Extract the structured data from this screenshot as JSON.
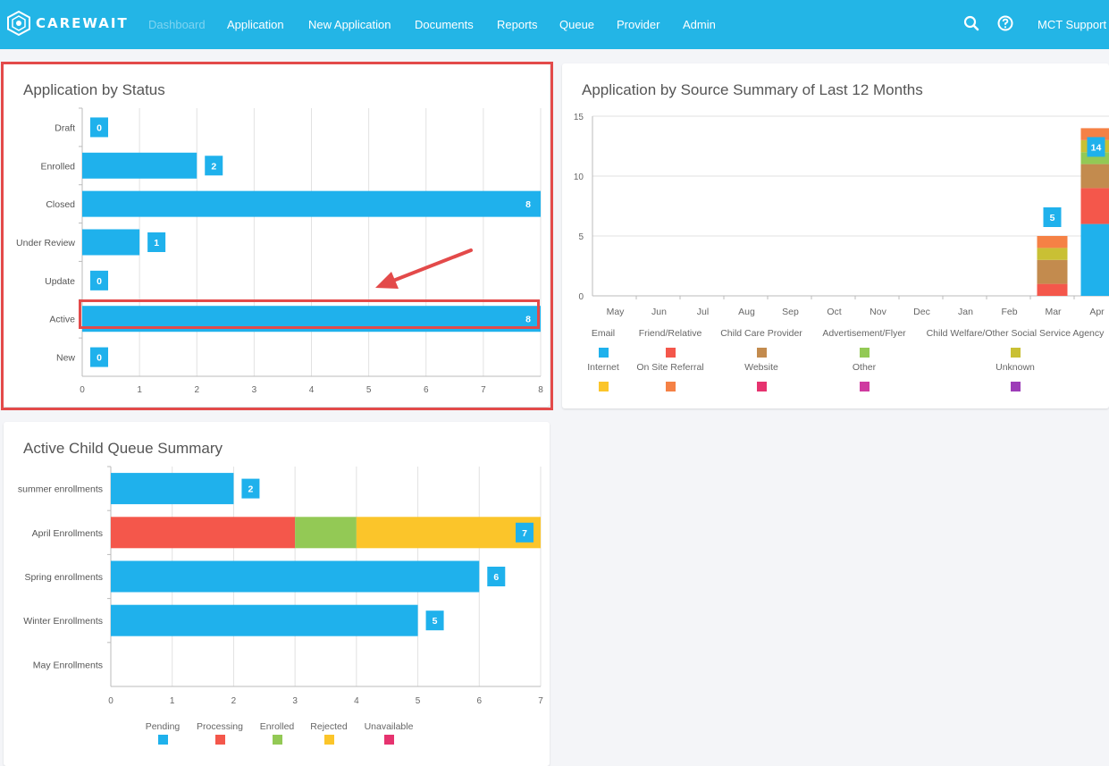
{
  "nav": {
    "brand": "CAREWAIT",
    "links": [
      "Dashboard",
      "Application",
      "New Application",
      "Documents",
      "Reports",
      "Queue",
      "Provider",
      "Admin"
    ],
    "user": "MCT Support ▾",
    "icons": [
      "search-icon",
      "help-icon"
    ],
    "color": "#23b5e6"
  },
  "panels": {
    "status_title": "Application by Status",
    "source_title": "Application by Source Summary of Last 12 Months",
    "queue_title": "Active Child Queue Summary"
  },
  "colors": {
    "Email": "#1fb1ec",
    "Friend/Relative": "#f4574b",
    "Child Care Provider": "#c38b4e",
    "Advertisement/Flyer": "#93c955",
    "Child Welfare/Other Social Service Agency": "#c9c034",
    "Internet": "#fbc52a",
    "On Site Referral": "#f58145",
    "Website": "#e6336f",
    "Other": "#cf3aa0",
    "Unknown": "#9d3cb8",
    "Pending": "#1fb1ec",
    "Processing": "#f4574b",
    "Enrolled": "#93c955",
    "Rejected": "#fbc52a",
    "Unavailable": "#e6336f",
    "highlight": "#e34a4a"
  },
  "chart_data": [
    {
      "type": "bar",
      "orientation": "horizontal",
      "title": "Application by Status",
      "categories": [
        "Draft",
        "Enrolled",
        "Closed",
        "Under Review",
        "Update",
        "Active",
        "New"
      ],
      "values": [
        0,
        2,
        8,
        1,
        0,
        8,
        0
      ],
      "xlim": [
        0,
        8
      ],
      "xticks": [
        "0",
        "1",
        "2",
        "3",
        "4",
        "5",
        "6",
        "7",
        "8"
      ],
      "grid": true,
      "highlighted_category": "Active"
    },
    {
      "type": "bar",
      "stacked": true,
      "title": "Application by Source Summary of Last 12 Months",
      "categories": [
        "May",
        "Jun",
        "Jul",
        "Aug",
        "Sep",
        "Oct",
        "Nov",
        "Dec",
        "Jan",
        "Feb",
        "Mar",
        "Apr"
      ],
      "ylim": [
        0,
        15
      ],
      "yticks": [
        "0",
        "5",
        "10",
        "15"
      ],
      "totals": [
        "",
        "",
        "",
        "",
        "",
        "",
        "",
        "",
        "",
        "",
        "5",
        "14"
      ],
      "series": [
        {
          "name": "Email",
          "values": [
            0,
            0,
            0,
            0,
            0,
            0,
            0,
            0,
            0,
            0,
            0,
            6
          ]
        },
        {
          "name": "Friend/Relative",
          "values": [
            0,
            0,
            0,
            0,
            0,
            0,
            0,
            0,
            0,
            0,
            1,
            3
          ]
        },
        {
          "name": "Child Care Provider",
          "values": [
            0,
            0,
            0,
            0,
            0,
            0,
            0,
            0,
            0,
            0,
            2,
            2
          ]
        },
        {
          "name": "Advertisement/Flyer",
          "values": [
            0,
            0,
            0,
            0,
            0,
            0,
            0,
            0,
            0,
            0,
            0,
            1
          ]
        },
        {
          "name": "Child Welfare/Other Social Service Agency",
          "values": [
            0,
            0,
            0,
            0,
            0,
            0,
            0,
            0,
            0,
            0,
            1,
            1
          ]
        },
        {
          "name": "Internet",
          "values": [
            0,
            0,
            0,
            0,
            0,
            0,
            0,
            0,
            0,
            0,
            0,
            0
          ]
        },
        {
          "name": "On Site Referral",
          "values": [
            0,
            0,
            0,
            0,
            0,
            0,
            0,
            0,
            0,
            0,
            1,
            1
          ]
        },
        {
          "name": "Website",
          "values": [
            0,
            0,
            0,
            0,
            0,
            0,
            0,
            0,
            0,
            0,
            0,
            0
          ]
        },
        {
          "name": "Other",
          "values": [
            0,
            0,
            0,
            0,
            0,
            0,
            0,
            0,
            0,
            0,
            0,
            0
          ]
        },
        {
          "name": "Unknown",
          "values": [
            0,
            0,
            0,
            0,
            0,
            0,
            0,
            0,
            0,
            0,
            0,
            0
          ]
        }
      ],
      "legend": "bottom",
      "grid": true
    },
    {
      "type": "bar",
      "orientation": "horizontal",
      "stacked": true,
      "title": "Active Child Queue Summary",
      "categories": [
        "summer enrollments",
        "April Enrollments",
        "Spring enrollments",
        "Winter Enrollments",
        "May Enrollments"
      ],
      "totals": [
        "2",
        "7",
        "6",
        "5",
        ""
      ],
      "series": [
        {
          "name": "Pending",
          "values": [
            2,
            0,
            6,
            5,
            0
          ]
        },
        {
          "name": "Processing",
          "values": [
            0,
            3,
            0,
            0,
            0
          ]
        },
        {
          "name": "Enrolled",
          "values": [
            0,
            1,
            0,
            0,
            0
          ]
        },
        {
          "name": "Rejected",
          "values": [
            0,
            3,
            0,
            0,
            0
          ]
        },
        {
          "name": "Unavailable",
          "values": [
            0,
            0,
            0,
            0,
            0
          ]
        }
      ],
      "xlim": [
        0,
        7
      ],
      "xticks": [
        "0",
        "1",
        "2",
        "3",
        "4",
        "5",
        "6",
        "7"
      ],
      "legend": "bottom",
      "grid": true
    }
  ]
}
